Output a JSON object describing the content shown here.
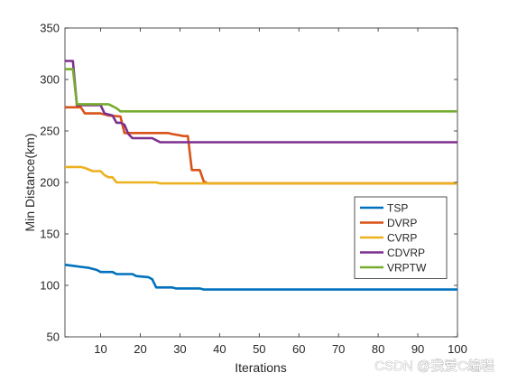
{
  "chart_data": {
    "type": "line",
    "xlabel": "Iterations",
    "ylabel": "Min Distance(km)",
    "xlim": [
      1,
      100
    ],
    "ylim": [
      50,
      350
    ],
    "xticks": [
      10,
      20,
      30,
      40,
      50,
      60,
      70,
      80,
      90,
      100
    ],
    "yticks": [
      50,
      100,
      150,
      200,
      250,
      300,
      350
    ],
    "grid": false,
    "legend_position": "right",
    "series": [
      {
        "name": "TSP",
        "color": "#0072BD",
        "points": [
          [
            1,
            120
          ],
          [
            3,
            119
          ],
          [
            5,
            118
          ],
          [
            7,
            117
          ],
          [
            9,
            115
          ],
          [
            10,
            113
          ],
          [
            12,
            113
          ],
          [
            13,
            113
          ],
          [
            14,
            111
          ],
          [
            18,
            111
          ],
          [
            19,
            109
          ],
          [
            22,
            108
          ],
          [
            23,
            106
          ],
          [
            24,
            98
          ],
          [
            28,
            98
          ],
          [
            29,
            97
          ],
          [
            35,
            97
          ],
          [
            36,
            96
          ],
          [
            100,
            96
          ]
        ]
      },
      {
        "name": "DVRP",
        "color": "#D95319",
        "points": [
          [
            1,
            273
          ],
          [
            5,
            273
          ],
          [
            6,
            267
          ],
          [
            10,
            267
          ],
          [
            12,
            265
          ],
          [
            15,
            264
          ],
          [
            16,
            248
          ],
          [
            17,
            248
          ],
          [
            23,
            248
          ],
          [
            24,
            248
          ],
          [
            27,
            248
          ],
          [
            28,
            247
          ],
          [
            31,
            245
          ],
          [
            32,
            245
          ],
          [
            33,
            212
          ],
          [
            35,
            212
          ],
          [
            36,
            201
          ],
          [
            37,
            199
          ],
          [
            100,
            199
          ]
        ]
      },
      {
        "name": "CVRP",
        "color": "#EDB120",
        "points": [
          [
            1,
            215
          ],
          [
            5,
            215
          ],
          [
            6,
            214
          ],
          [
            8,
            211
          ],
          [
            10,
            211
          ],
          [
            11,
            207
          ],
          [
            12,
            205
          ],
          [
            13,
            205
          ],
          [
            14,
            200
          ],
          [
            24,
            200
          ],
          [
            25,
            199
          ],
          [
            100,
            199
          ]
        ]
      },
      {
        "name": "CDVRP",
        "color": "#7E2F8E",
        "points": [
          [
            1,
            318
          ],
          [
            3,
            318
          ],
          [
            4,
            275
          ],
          [
            10,
            275
          ],
          [
            11,
            267
          ],
          [
            13,
            265
          ],
          [
            14,
            258
          ],
          [
            15,
            258
          ],
          [
            16,
            256
          ],
          [
            17,
            247
          ],
          [
            18,
            243
          ],
          [
            23,
            243
          ],
          [
            25,
            239
          ],
          [
            100,
            239
          ]
        ]
      },
      {
        "name": "VRPTW",
        "color": "#77AC30",
        "points": [
          [
            1,
            310
          ],
          [
            3,
            310
          ],
          [
            4,
            276
          ],
          [
            12,
            276
          ],
          [
            13,
            274
          ],
          [
            14,
            272
          ],
          [
            15,
            269
          ],
          [
            100,
            269
          ]
        ]
      }
    ]
  },
  "watermark": {
    "text": "CSDN @我爱C编程"
  }
}
